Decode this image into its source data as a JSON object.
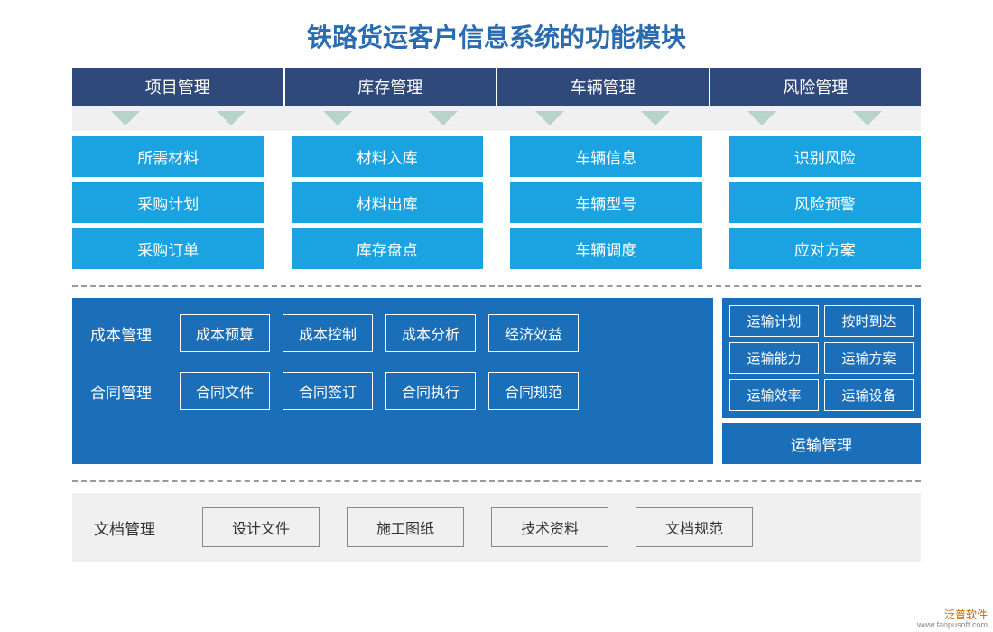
{
  "title": {
    "text": "铁路货运客户信息系统的功能模块",
    "color": "#2b6cb0",
    "fontsize": 28
  },
  "colors": {
    "dark_blue": "#2f4a7a",
    "light_blue": "#1ba3e1",
    "panel_bg": "#f0f0f0",
    "solid_blue": "#1b6fb8",
    "arrow_color": "#b8d4c9",
    "border_gray": "#888888",
    "text_dark": "#333333"
  },
  "header": {
    "items": [
      "项目管理",
      "库存管理",
      "车辆管理",
      "风险管理"
    ],
    "bg": "#2f4a7a",
    "color": "#ffffff",
    "fontsize": 18
  },
  "arrows": {
    "per_column": 2,
    "color": "#b8d4c9"
  },
  "grid": {
    "rows": [
      [
        "所需材料",
        "材料入库",
        "车辆信息",
        "识别风险"
      ],
      [
        "采购计划",
        "材料出库",
        "车辆型号",
        "风险预警"
      ],
      [
        "采购订单",
        "库存盘点",
        "车辆调度",
        "应对方案"
      ]
    ],
    "cell_bg": "#1ba3e1",
    "cell_color": "#ffffff",
    "fontsize": 17
  },
  "middle_left": {
    "bg": "#1b6fb8",
    "rows": [
      {
        "label": "成本管理",
        "items": [
          "成本预算",
          "成本控制",
          "成本分析",
          "经济效益"
        ]
      },
      {
        "label": "合同管理",
        "items": [
          "合同文件",
          "合同签订",
          "合同执行",
          "合同规范"
        ]
      }
    ],
    "label_color": "#ffffff",
    "box_border": "#ffffff",
    "fontsize": 16
  },
  "middle_right": {
    "bg": "#1b6fb8",
    "grid": [
      [
        "运输计划",
        "按时到达"
      ],
      [
        "运输能力",
        "运输方案"
      ],
      [
        "运输效率",
        "运输设备"
      ]
    ],
    "title": "运输管理",
    "fontsize": 15
  },
  "bottom": {
    "bg": "#f0f0f0",
    "label": "文档管理",
    "items": [
      "设计文件",
      "施工图纸",
      "技术资料",
      "文档规范"
    ],
    "border": "#888888",
    "text_color": "#333333",
    "fontsize": 16
  },
  "watermark": {
    "line1": "泛普软件",
    "line2": "www.fanpusoft.com"
  }
}
